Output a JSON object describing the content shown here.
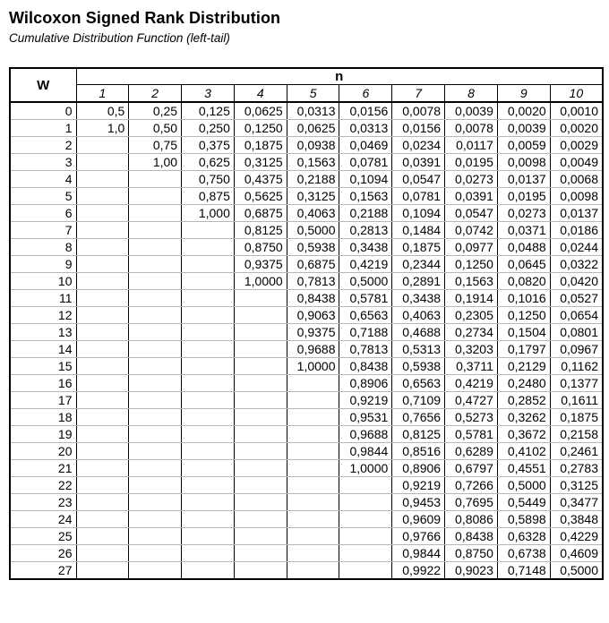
{
  "title": "Wilcoxon Signed Rank Distribution",
  "subtitle": "Cumulative Distribution Function (left-tail)",
  "colors": {
    "background": "#ffffff",
    "text": "#000000",
    "grid_vertical": "#000000",
    "grid_horizontal": "#b7b7b7",
    "outer_border": "#000000"
  },
  "table": {
    "w_header": "W",
    "n_group_header": "n",
    "n_columns": [
      "1",
      "2",
      "3",
      "4",
      "5",
      "6",
      "7",
      "8",
      "9",
      "10"
    ],
    "rows": [
      {
        "w": "0",
        "values": [
          "0,5",
          "0,25",
          "0,125",
          "0,0625",
          "0,0313",
          "0,0156",
          "0,0078",
          "0,0039",
          "0,0020",
          "0,0010"
        ]
      },
      {
        "w": "1",
        "values": [
          "1,0",
          "0,50",
          "0,250",
          "0,1250",
          "0,0625",
          "0,0313",
          "0,0156",
          "0,0078",
          "0,0039",
          "0,0020"
        ]
      },
      {
        "w": "2",
        "values": [
          "",
          "0,75",
          "0,375",
          "0,1875",
          "0,0938",
          "0,0469",
          "0,0234",
          "0,0117",
          "0,0059",
          "0,0029"
        ]
      },
      {
        "w": "3",
        "values": [
          "",
          "1,00",
          "0,625",
          "0,3125",
          "0,1563",
          "0,0781",
          "0,0391",
          "0,0195",
          "0,0098",
          "0,0049"
        ]
      },
      {
        "w": "4",
        "values": [
          "",
          "",
          "0,750",
          "0,4375",
          "0,2188",
          "0,1094",
          "0,0547",
          "0,0273",
          "0,0137",
          "0,0068"
        ]
      },
      {
        "w": "5",
        "values": [
          "",
          "",
          "0,875",
          "0,5625",
          "0,3125",
          "0,1563",
          "0,0781",
          "0,0391",
          "0,0195",
          "0,0098"
        ]
      },
      {
        "w": "6",
        "values": [
          "",
          "",
          "1,000",
          "0,6875",
          "0,4063",
          "0,2188",
          "0,1094",
          "0,0547",
          "0,0273",
          "0,0137"
        ]
      },
      {
        "w": "7",
        "values": [
          "",
          "",
          "",
          "0,8125",
          "0,5000",
          "0,2813",
          "0,1484",
          "0,0742",
          "0,0371",
          "0,0186"
        ]
      },
      {
        "w": "8",
        "values": [
          "",
          "",
          "",
          "0,8750",
          "0,5938",
          "0,3438",
          "0,1875",
          "0,0977",
          "0,0488",
          "0,0244"
        ]
      },
      {
        "w": "9",
        "values": [
          "",
          "",
          "",
          "0,9375",
          "0,6875",
          "0,4219",
          "0,2344",
          "0,1250",
          "0,0645",
          "0,0322"
        ]
      },
      {
        "w": "10",
        "values": [
          "",
          "",
          "",
          "1,0000",
          "0,7813",
          "0,5000",
          "0,2891",
          "0,1563",
          "0,0820",
          "0,0420"
        ]
      },
      {
        "w": "11",
        "values": [
          "",
          "",
          "",
          "",
          "0,8438",
          "0,5781",
          "0,3438",
          "0,1914",
          "0,1016",
          "0,0527"
        ]
      },
      {
        "w": "12",
        "values": [
          "",
          "",
          "",
          "",
          "0,9063",
          "0,6563",
          "0,4063",
          "0,2305",
          "0,1250",
          "0,0654"
        ]
      },
      {
        "w": "13",
        "values": [
          "",
          "",
          "",
          "",
          "0,9375",
          "0,7188",
          "0,4688",
          "0,2734",
          "0,1504",
          "0,0801"
        ]
      },
      {
        "w": "14",
        "values": [
          "",
          "",
          "",
          "",
          "0,9688",
          "0,7813",
          "0,5313",
          "0,3203",
          "0,1797",
          "0,0967"
        ]
      },
      {
        "w": "15",
        "values": [
          "",
          "",
          "",
          "",
          "1,0000",
          "0,8438",
          "0,5938",
          "0,3711",
          "0,2129",
          "0,1162"
        ]
      },
      {
        "w": "16",
        "values": [
          "",
          "",
          "",
          "",
          "",
          "0,8906",
          "0,6563",
          "0,4219",
          "0,2480",
          "0,1377"
        ]
      },
      {
        "w": "17",
        "values": [
          "",
          "",
          "",
          "",
          "",
          "0,9219",
          "0,7109",
          "0,4727",
          "0,2852",
          "0,1611"
        ]
      },
      {
        "w": "18",
        "values": [
          "",
          "",
          "",
          "",
          "",
          "0,9531",
          "0,7656",
          "0,5273",
          "0,3262",
          "0,1875"
        ]
      },
      {
        "w": "19",
        "values": [
          "",
          "",
          "",
          "",
          "",
          "0,9688",
          "0,8125",
          "0,5781",
          "0,3672",
          "0,2158"
        ]
      },
      {
        "w": "20",
        "values": [
          "",
          "",
          "",
          "",
          "",
          "0,9844",
          "0,8516",
          "0,6289",
          "0,4102",
          "0,2461"
        ]
      },
      {
        "w": "21",
        "values": [
          "",
          "",
          "",
          "",
          "",
          "1,0000",
          "0,8906",
          "0,6797",
          "0,4551",
          "0,2783"
        ]
      },
      {
        "w": "22",
        "values": [
          "",
          "",
          "",
          "",
          "",
          "",
          "0,9219",
          "0,7266",
          "0,5000",
          "0,3125"
        ]
      },
      {
        "w": "23",
        "values": [
          "",
          "",
          "",
          "",
          "",
          "",
          "0,9453",
          "0,7695",
          "0,5449",
          "0,3477"
        ]
      },
      {
        "w": "24",
        "values": [
          "",
          "",
          "",
          "",
          "",
          "",
          "0,9609",
          "0,8086",
          "0,5898",
          "0,3848"
        ]
      },
      {
        "w": "25",
        "values": [
          "",
          "",
          "",
          "",
          "",
          "",
          "0,9766",
          "0,8438",
          "0,6328",
          "0,4229"
        ]
      },
      {
        "w": "26",
        "values": [
          "",
          "",
          "",
          "",
          "",
          "",
          "0,9844",
          "0,8750",
          "0,6738",
          "0,4609"
        ]
      },
      {
        "w": "27",
        "values": [
          "",
          "",
          "",
          "",
          "",
          "",
          "0,9922",
          "0,9023",
          "0,7148",
          "0,5000"
        ]
      }
    ]
  }
}
